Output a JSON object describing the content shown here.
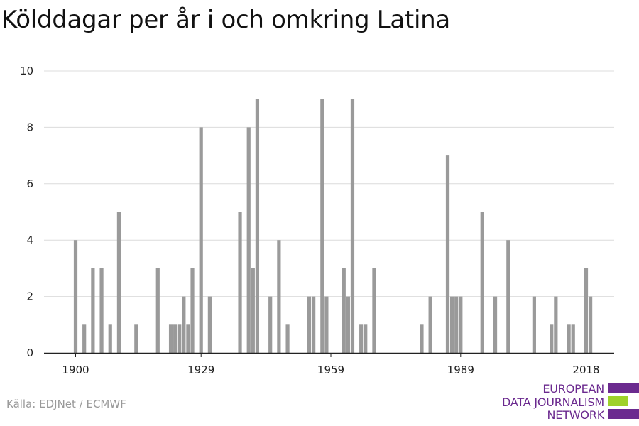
{
  "chart_data": {
    "type": "bar",
    "title": "Kölddagar per år i och omkring Latina",
    "xlabel": "",
    "ylabel": "",
    "xlim": [
      1900,
      2018
    ],
    "ylim": [
      0,
      10
    ],
    "x_ticks": [
      1900,
      1929,
      1959,
      1989,
      2018
    ],
    "y_ticks": [
      0,
      2,
      4,
      6,
      8,
      10
    ],
    "grid": true,
    "legend": "none",
    "bar_color": "#9a9a9a",
    "points": [
      {
        "x": 1900,
        "y": 4
      },
      {
        "x": 1902,
        "y": 1
      },
      {
        "x": 1904,
        "y": 3
      },
      {
        "x": 1906,
        "y": 3
      },
      {
        "x": 1908,
        "y": 1
      },
      {
        "x": 1910,
        "y": 5
      },
      {
        "x": 1914,
        "y": 1
      },
      {
        "x": 1919,
        "y": 3
      },
      {
        "x": 1922,
        "y": 1
      },
      {
        "x": 1923,
        "y": 1
      },
      {
        "x": 1924,
        "y": 1
      },
      {
        "x": 1925,
        "y": 2
      },
      {
        "x": 1926,
        "y": 1
      },
      {
        "x": 1927,
        "y": 3
      },
      {
        "x": 1929,
        "y": 8
      },
      {
        "x": 1931,
        "y": 2
      },
      {
        "x": 1938,
        "y": 5
      },
      {
        "x": 1940,
        "y": 8
      },
      {
        "x": 1941,
        "y": 3
      },
      {
        "x": 1942,
        "y": 9
      },
      {
        "x": 1945,
        "y": 2
      },
      {
        "x": 1947,
        "y": 4
      },
      {
        "x": 1949,
        "y": 1
      },
      {
        "x": 1954,
        "y": 2
      },
      {
        "x": 1955,
        "y": 2
      },
      {
        "x": 1957,
        "y": 9
      },
      {
        "x": 1958,
        "y": 2
      },
      {
        "x": 1962,
        "y": 3
      },
      {
        "x": 1963,
        "y": 2
      },
      {
        "x": 1964,
        "y": 9
      },
      {
        "x": 1966,
        "y": 1
      },
      {
        "x": 1967,
        "y": 1
      },
      {
        "x": 1969,
        "y": 3
      },
      {
        "x": 1980,
        "y": 1
      },
      {
        "x": 1982,
        "y": 2
      },
      {
        "x": 1986,
        "y": 7
      },
      {
        "x": 1987,
        "y": 2
      },
      {
        "x": 1988,
        "y": 2
      },
      {
        "x": 1989,
        "y": 2
      },
      {
        "x": 1994,
        "y": 5
      },
      {
        "x": 1997,
        "y": 2
      },
      {
        "x": 2000,
        "y": 4
      },
      {
        "x": 2006,
        "y": 2
      },
      {
        "x": 2010,
        "y": 1
      },
      {
        "x": 2011,
        "y": 2
      },
      {
        "x": 2014,
        "y": 1
      },
      {
        "x": 2015,
        "y": 1
      },
      {
        "x": 2018,
        "y": 3
      },
      {
        "x": 2019,
        "y": 2
      }
    ]
  },
  "source": "Källa: EDJNet / ECMWF",
  "logo": {
    "line1": "EUROPEAN",
    "line2": "DATA JOURNALISM",
    "line3": "NETWORK",
    "color_primary": "#6b2a8f",
    "color_accent": "#9ed12a"
  }
}
